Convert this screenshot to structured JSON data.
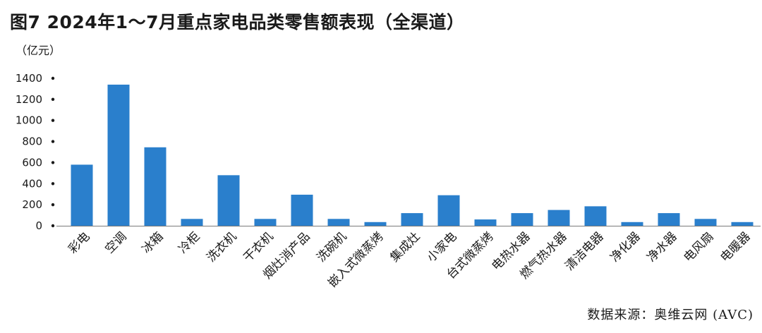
{
  "chart_data": {
    "type": "bar",
    "title": "图7 2024年1～7月重点家电品类零售额表现（全渠道）",
    "ylabel": "（亿元）",
    "source": "数据来源：奥维云网 (AVC)",
    "categories": [
      "彩电",
      "空调",
      "冰箱",
      "冷柜",
      "洗衣机",
      "干衣机",
      "烟灶消产品",
      "洗碗机",
      "嵌入式微蒸烤",
      "集成灶",
      "小家电",
      "台式微蒸烤",
      "电热水器",
      "燃气热水器",
      "清洁电器",
      "净化器",
      "净水器",
      "电风扇",
      "电暖器"
    ],
    "values": [
      580,
      1340,
      745,
      65,
      480,
      65,
      295,
      65,
      35,
      120,
      290,
      60,
      120,
      150,
      185,
      35,
      120,
      65,
      35
    ],
    "yticks": [
      0,
      200,
      400,
      600,
      800,
      1000,
      1200,
      1400
    ],
    "ylim": [
      0,
      1400
    ],
    "bar_color": "#2a7fcc",
    "grid": false,
    "legend": "none"
  }
}
